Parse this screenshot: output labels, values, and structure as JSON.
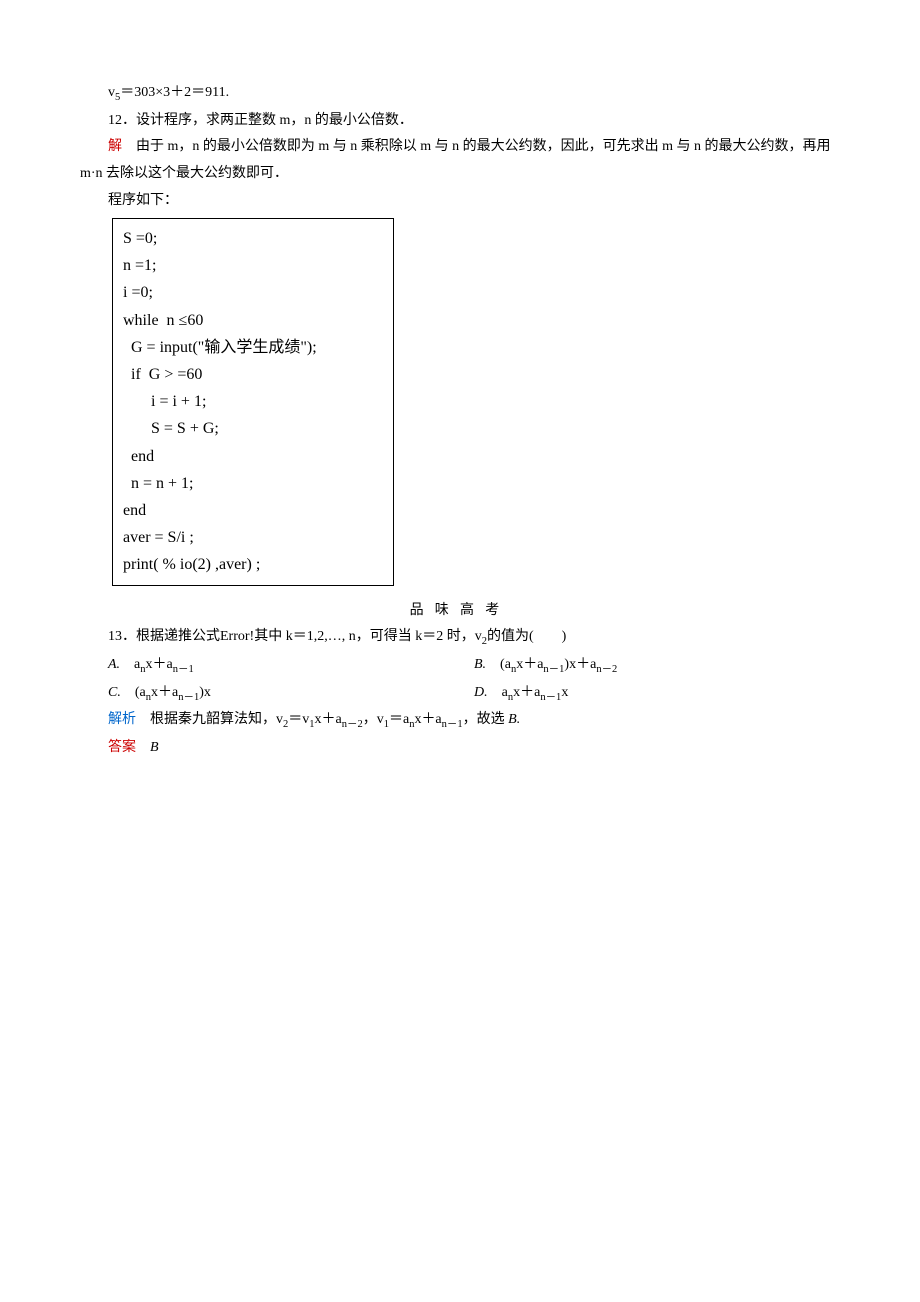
{
  "line_v5": [
    "v",
    "5",
    "＝303×3＋2＝911."
  ],
  "q12": "12．设计程序，求两正整数 m，n 的最小公倍数．",
  "q12_sol_label": "解",
  "q12_sol_text": "　由于 m，n 的最小公倍数即为 m 与 n 乘积除以 m 与 n 的最大公约数，因此，可先求出 m 与 n 的最大公约数，再用 m·n 去除以这个最大公约数即可．",
  "q12_prog_intro": "程序如下：",
  "code": [
    "S =0;",
    "n =1;",
    "i =0;",
    "while  n ≤60",
    "  G = input(\"输入学生成绩\");",
    "  if  G > =60",
    "       i = i + 1;",
    "       S = S + G;",
    "  end",
    "  n = n + 1;",
    "end",
    "aver = S/i ;",
    "print( % io(2) ,aver) ;"
  ],
  "section_title": "品味高考",
  "q13_prefix": "13．根据递推公式",
  "q13_error": "Error!",
  "q13_rest1": "其中 k＝1,2,…, n，可得当 k＝2 时，v",
  "q13_rest2": "的值为(　　)",
  "optA": {
    "letter": "A.",
    "parts": [
      "　a",
      "n",
      "x＋a",
      "n－1"
    ]
  },
  "optB": {
    "letter": "B.",
    "parts": [
      "　(a",
      "n",
      "x＋a",
      "n－1",
      ")x＋a",
      "n－2"
    ]
  },
  "optC": {
    "letter": "C.",
    "parts": [
      "　(a",
      "n",
      "x＋a",
      "n－1",
      ")x"
    ]
  },
  "optD": {
    "letter": "D.",
    "parts": [
      "　a",
      "n",
      "x＋a",
      "n－1",
      "x"
    ]
  },
  "analysis_label": "解析",
  "analysis_text": [
    "　根据秦九韶算法知，v",
    "2",
    "＝v",
    "1",
    "x＋a",
    "n－2",
    "，v",
    "1",
    "＝a",
    "n",
    "x＋a",
    "n－1",
    "，故选 "
  ],
  "analysis_choice": "B.",
  "answer_label": "答案",
  "answer_value": "B"
}
